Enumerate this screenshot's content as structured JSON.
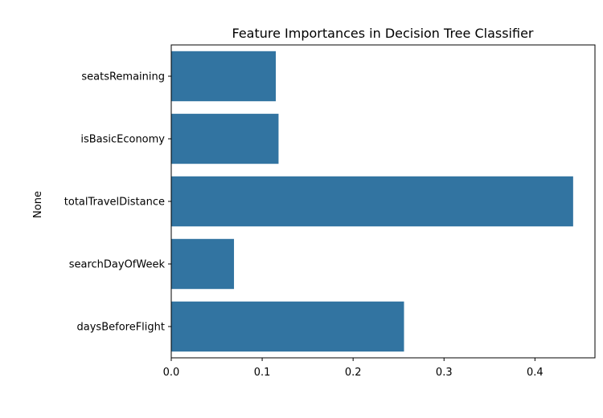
{
  "chart_data": {
    "type": "bar",
    "orientation": "horizontal",
    "title": "Feature Importances in Decision Tree Classifier",
    "xlabel": "",
    "ylabel": "None",
    "categories": [
      "seatsRemaining",
      "isBasicEconomy",
      "totalTravelDistance",
      "searchDayOfWeek",
      "daysBeforeFlight"
    ],
    "values": [
      0.115,
      0.118,
      0.442,
      0.069,
      0.256
    ],
    "xlim": [
      0,
      0.466
    ],
    "xticks": [
      0.0,
      0.1,
      0.2,
      0.3,
      0.4
    ],
    "xtick_labels": [
      "0.0",
      "0.1",
      "0.2",
      "0.3",
      "0.4"
    ],
    "grid": false,
    "bar_color": "#3274a1"
  }
}
